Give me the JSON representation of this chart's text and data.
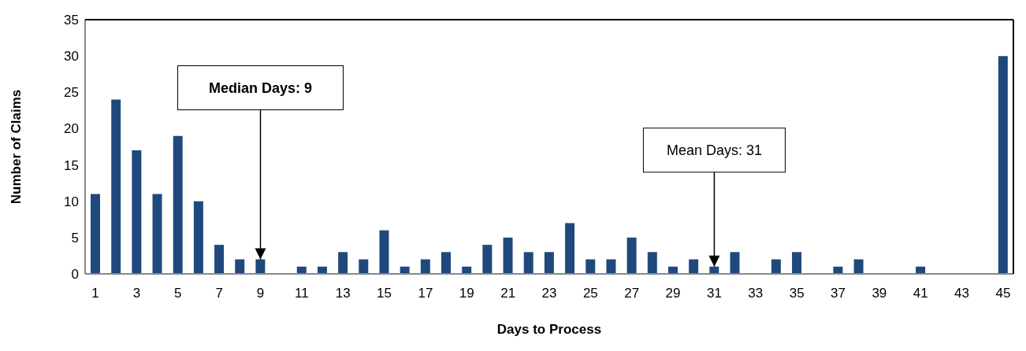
{
  "chart_data": {
    "type": "bar",
    "xlabel": "Days to Process",
    "ylabel": "Number of Claims",
    "x": [
      1,
      2,
      3,
      4,
      5,
      6,
      7,
      8,
      9,
      10,
      11,
      12,
      13,
      14,
      15,
      16,
      17,
      18,
      19,
      20,
      21,
      22,
      23,
      24,
      25,
      26,
      27,
      28,
      29,
      30,
      31,
      32,
      33,
      34,
      35,
      36,
      37,
      38,
      39,
      40,
      41,
      42,
      43,
      44,
      45
    ],
    "values": [
      11,
      24,
      17,
      11,
      19,
      10,
      4,
      2,
      2,
      0,
      1,
      1,
      3,
      2,
      6,
      1,
      2,
      3,
      1,
      4,
      5,
      3,
      3,
      7,
      2,
      2,
      5,
      3,
      1,
      2,
      1,
      3,
      0,
      2,
      3,
      0,
      1,
      2,
      0,
      0,
      1,
      0,
      0,
      0,
      30
    ],
    "color": "#1f497d",
    "xlim": [
      0.5,
      45.5
    ],
    "xticks": [
      1,
      3,
      5,
      7,
      9,
      11,
      13,
      15,
      17,
      19,
      21,
      23,
      25,
      27,
      29,
      31,
      33,
      35,
      37,
      39,
      41,
      43,
      45
    ],
    "ylim": [
      0,
      35
    ],
    "yticks": [
      0,
      5,
      10,
      15,
      20,
      25,
      30,
      35
    ],
    "grid": false,
    "legend": false,
    "annotations": [
      {
        "text": "Median Days: 9",
        "x": 9,
        "y": 2
      },
      {
        "text": "Mean Days: 31",
        "x": 31,
        "y": 1
      }
    ]
  }
}
